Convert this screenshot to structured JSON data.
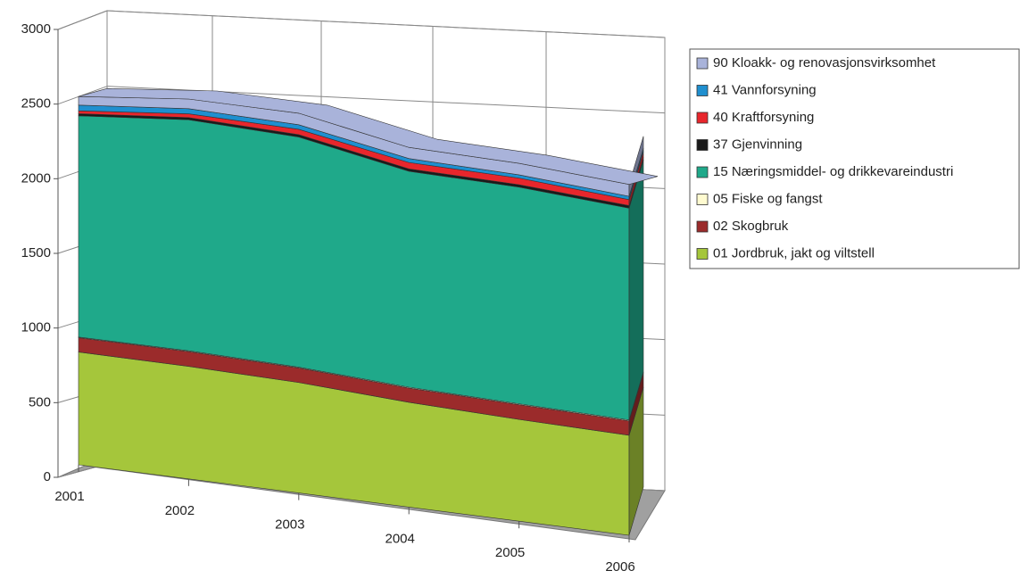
{
  "chart_data": {
    "type": "area3d",
    "stacked": true,
    "categories": [
      "2001",
      "2002",
      "2003",
      "2004",
      "2005",
      "2006"
    ],
    "ylim": [
      0,
      3000
    ],
    "yticks": [
      0,
      500,
      1000,
      1500,
      2000,
      2500,
      3000
    ],
    "grid": true,
    "series": [
      {
        "name": "01 Jordbruk, jakt og viltstell",
        "color": "#a5c63b",
        "values": [
          790,
          760,
          720,
          660,
          620,
          590
        ]
      },
      {
        "name": "02 Skogbruk",
        "color": "#9b2b2b",
        "values": [
          100,
          100,
          95,
          90,
          90,
          85
        ]
      },
      {
        "name": "05 Fiske og fangst",
        "color": "#fffbd0",
        "values": [
          5,
          5,
          5,
          5,
          5,
          5
        ]
      },
      {
        "name": "15 Næringsmiddel- og drikkevareindustri",
        "color": "#1fa98a",
        "values": [
          1550,
          1560,
          1500,
          1360,
          1320,
          1250
        ]
      },
      {
        "name": "37 Gjenvinning",
        "color": "#1a1a1a",
        "values": [
          15,
          15,
          15,
          15,
          15,
          15
        ]
      },
      {
        "name": "40 Kraftforsyning",
        "color": "#e8262c",
        "values": [
          20,
          25,
          35,
          40,
          40,
          35
        ]
      },
      {
        "name": "41 Vannforsyning",
        "color": "#1f8fcf",
        "values": [
          40,
          35,
          30,
          25,
          20,
          20
        ]
      },
      {
        "name": "90 Kloakk- og renovasjonsvirksomhet",
        "color": "#a9b3da",
        "values": [
          60,
          65,
          75,
          70,
          70,
          70
        ]
      }
    ],
    "legend": "right"
  }
}
